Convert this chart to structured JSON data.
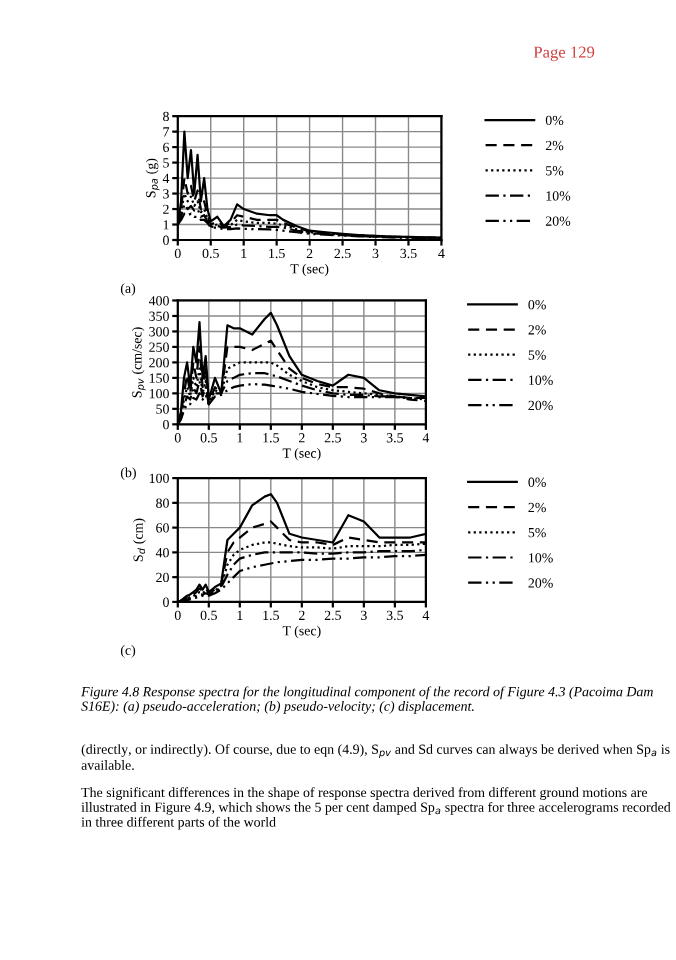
{
  "chart_data": [
    {
      "type": "line",
      "xlabel": "T (sec)",
      "ylabel": "S$_{pa}$ (g)",
      "annotations": [
        "(a)",
        "Page 129"
      ],
      "x": [
        0,
        0.05,
        0.1,
        0.15,
        0.2,
        0.25,
        0.3,
        0.35,
        0.4,
        0.45,
        0.5,
        0.6,
        0.7,
        0.8,
        0.9,
        1.0,
        1.2,
        1.4,
        1.5,
        1.6,
        1.8,
        2.0,
        2.25,
        2.5,
        2.75,
        3.0,
        3.25,
        3.5,
        3.75,
        4.0
      ],
      "series": [
        {
          "name": "0%",
          "color": "#000000",
          "line_style": "solid",
          "values": [
            1,
            2.5,
            7,
            4,
            5.8,
            3,
            5.5,
            2.5,
            4,
            2,
            1.2,
            1.5,
            0.9,
            1.3,
            2.3,
            2.0,
            1.7,
            1.6,
            1.6,
            1.3,
            0.9,
            0.6,
            0.5,
            0.4,
            0.32,
            0.26,
            0.22,
            0.2,
            0.17,
            0.15
          ]
        },
        {
          "name": "2%",
          "color": "#000000",
          "line_style": "dashed",
          "values": [
            1,
            2,
            4,
            3,
            3.5,
            2.5,
            3.2,
            2,
            2.5,
            1.6,
            1,
            1.2,
            0.9,
            1.1,
            1.6,
            1.5,
            1.3,
            1.3,
            1.3,
            1.1,
            0.8,
            0.55,
            0.45,
            0.37,
            0.3,
            0.25,
            0.21,
            0.19,
            0.16,
            0.14
          ]
        },
        {
          "name": "5%",
          "color": "#000000",
          "line_style": "dotted",
          "values": [
            1,
            1.8,
            3,
            2.5,
            2.8,
            2.2,
            2.5,
            1.8,
            2,
            1.4,
            0.9,
            1.0,
            0.85,
            0.95,
            1.3,
            1.2,
            1.1,
            1.1,
            1.05,
            0.95,
            0.7,
            0.5,
            0.42,
            0.35,
            0.28,
            0.23,
            0.2,
            0.18,
            0.15,
            0.13
          ]
        },
        {
          "name": "10%",
          "color": "#000000",
          "line_style": "dashdot",
          "values": [
            1,
            1.5,
            2.3,
            2,
            2.2,
            1.9,
            2,
            1.5,
            1.6,
            1.2,
            0.85,
            0.9,
            0.8,
            0.85,
            1.0,
            0.95,
            0.9,
            0.85,
            0.85,
            0.8,
            0.6,
            0.45,
            0.38,
            0.32,
            0.26,
            0.22,
            0.19,
            0.17,
            0.14,
            0.12
          ]
        },
        {
          "name": "20%",
          "color": "#000000",
          "line_style": "dashdotdot",
          "values": [
            1,
            1.3,
            1.7,
            1.6,
            1.7,
            1.5,
            1.5,
            1.3,
            1.3,
            1.1,
            0.8,
            0.8,
            0.7,
            0.7,
            0.75,
            0.72,
            0.7,
            0.68,
            0.65,
            0.6,
            0.5,
            0.4,
            0.34,
            0.29,
            0.24,
            0.2,
            0.17,
            0.15,
            0.13,
            0.11
          ]
        }
      ],
      "xlim": [
        0,
        4
      ],
      "xticks": [
        0,
        0.5,
        1,
        1.5,
        2,
        2.5,
        3,
        3.5,
        4
      ],
      "ylim": [
        0,
        8
      ],
      "yticks": [
        0,
        1,
        2,
        3,
        4,
        5,
        6,
        7,
        8
      ],
      "grid": true,
      "legend": "right"
    },
    {
      "type": "line",
      "xlabel": "T (sec)",
      "ylabel": "S$_{pv}$ (cm/sec)",
      "annotations": [
        "(b)"
      ],
      "x": [
        0,
        0.05,
        0.1,
        0.15,
        0.2,
        0.25,
        0.3,
        0.35,
        0.4,
        0.45,
        0.5,
        0.6,
        0.7,
        0.8,
        0.9,
        1.0,
        1.2,
        1.4,
        1.5,
        1.6,
        1.8,
        2.0,
        2.25,
        2.5,
        2.75,
        3.0,
        3.25,
        3.5,
        3.75,
        4.0
      ],
      "series": [
        {
          "name": "0%",
          "color": "#000000",
          "line_style": "solid",
          "values": [
            0,
            40,
            150,
            200,
            120,
            250,
            200,
            330,
            150,
            220,
            80,
            150,
            100,
            320,
            310,
            310,
            290,
            340,
            360,
            320,
            220,
            160,
            140,
            125,
            160,
            150,
            110,
            100,
            95,
            90
          ]
        },
        {
          "name": "2%",
          "color": "#000000",
          "line_style": "dashed",
          "values": [
            0,
            30,
            100,
            160,
            100,
            200,
            150,
            250,
            120,
            180,
            70,
            120,
            100,
            250,
            250,
            250,
            240,
            260,
            270,
            240,
            180,
            150,
            130,
            120,
            120,
            115,
            100,
            90,
            80,
            75
          ]
        },
        {
          "name": "5%",
          "color": "#000000",
          "line_style": "dotted",
          "values": [
            0,
            25,
            80,
            120,
            90,
            150,
            120,
            180,
            100,
            140,
            65,
            110,
            100,
            180,
            190,
            200,
            200,
            200,
            200,
            190,
            160,
            140,
            120,
            110,
            105,
            100,
            95,
            90,
            85,
            80
          ]
        },
        {
          "name": "10%",
          "color": "#000000",
          "line_style": "dashdot",
          "values": [
            0,
            20,
            60,
            90,
            80,
            120,
            100,
            140,
            90,
            120,
            65,
            100,
            100,
            140,
            150,
            160,
            165,
            165,
            160,
            155,
            140,
            125,
            110,
            100,
            95,
            95,
            90,
            90,
            85,
            85
          ]
        },
        {
          "name": "20%",
          "color": "#000000",
          "line_style": "dashdotdot",
          "values": [
            0,
            15,
            45,
            65,
            65,
            85,
            80,
            100,
            80,
            95,
            65,
            90,
            95,
            110,
            120,
            125,
            130,
            128,
            125,
            122,
            115,
            105,
            98,
            92,
            88,
            88,
            88,
            88,
            85,
            85
          ]
        }
      ],
      "xlim": [
        0,
        4
      ],
      "xticks": [
        0,
        0.5,
        1,
        1.5,
        2,
        2.5,
        3,
        3.5,
        4
      ],
      "ylim": [
        0,
        400
      ],
      "yticks": [
        0,
        50,
        100,
        150,
        200,
        250,
        300,
        350,
        400
      ],
      "grid": true,
      "legend": "right"
    },
    {
      "type": "line",
      "xlabel": "T (sec)",
      "ylabel": "S$_{d}$ (cm)",
      "annotations": [
        "(c)",
        "Figure 4.8 Response spectra for the longitudinal component of the record of Figure 4.3 (Pacoima Dam S16E): (a) pseudo-acceleration; (b) pseudo-velocity; (c) displacement.",
        "(directly, or indirectly). Of course, due to eqn (4.9), S$_{pv}$ and Sd curves can always be derived when Sp$_{a}$ is available.",
        "The significant differences in the shape of response spectra derived from different ground motions are illustrated in Figure 4.9, which shows the 5 per cent damped Sp$_{a}$ spectra for three accelerograms recorded in three different parts of the world"
      ],
      "x": [
        0,
        0.05,
        0.1,
        0.15,
        0.2,
        0.25,
        0.3,
        0.35,
        0.4,
        0.45,
        0.5,
        0.6,
        0.7,
        0.8,
        0.9,
        1.0,
        1.2,
        1.4,
        1.5,
        1.6,
        1.8,
        2.0,
        2.25,
        2.5,
        2.75,
        3.0,
        3.25,
        3.5,
        3.75,
        4.0
      ],
      "series": [
        {
          "name": "0%",
          "color": "#000000",
          "line_style": "solid",
          "values": [
            0,
            1,
            3,
            5,
            6,
            8,
            10,
            14,
            10,
            14,
            8,
            12,
            15,
            50,
            55,
            60,
            78,
            85,
            87,
            80,
            55,
            52,
            50,
            48,
            70,
            65,
            52,
            52,
            52,
            55
          ]
        },
        {
          "name": "2%",
          "color": "#000000",
          "line_style": "dashed",
          "values": [
            0,
            1,
            2,
            4,
            5,
            6,
            8,
            11,
            9,
            11,
            7,
            10,
            14,
            40,
            48,
            52,
            60,
            63,
            65,
            60,
            50,
            48,
            48,
            46,
            52,
            50,
            48,
            48,
            48,
            48
          ]
        },
        {
          "name": "5%",
          "color": "#000000",
          "line_style": "dotted",
          "values": [
            0,
            1,
            2,
            3,
            4,
            5,
            6,
            8,
            7,
            9,
            6,
            9,
            13,
            30,
            38,
            42,
            46,
            48,
            48,
            47,
            45,
            44,
            44,
            43,
            45,
            45,
            45,
            46,
            46,
            47
          ]
        },
        {
          "name": "10%",
          "color": "#000000",
          "line_style": "dashdot",
          "values": [
            0,
            1,
            1.5,
            2,
            3,
            4,
            5,
            6,
            6,
            7,
            6,
            8,
            12,
            22,
            30,
            35,
            38,
            40,
            40,
            40,
            40,
            40,
            39,
            39,
            40,
            40,
            41,
            41,
            41,
            42
          ]
        },
        {
          "name": "20%",
          "color": "#000000",
          "line_style": "dashdotdot",
          "values": [
            0,
            0.5,
            1,
            1.5,
            2,
            3,
            3.5,
            4,
            5,
            5.5,
            5,
            7,
            10,
            15,
            20,
            25,
            28,
            30,
            31,
            32,
            33,
            34,
            34,
            35,
            35,
            36,
            36,
            37,
            37,
            38
          ]
        }
      ],
      "xlim": [
        0,
        4
      ],
      "xticks": [
        0,
        0.5,
        1,
        1.5,
        2,
        2.5,
        3,
        3.5,
        4
      ],
      "ylim": [
        0,
        100
      ],
      "yticks": [
        0,
        20,
        40,
        60,
        80,
        100
      ],
      "grid": true,
      "legend": "right"
    }
  ]
}
